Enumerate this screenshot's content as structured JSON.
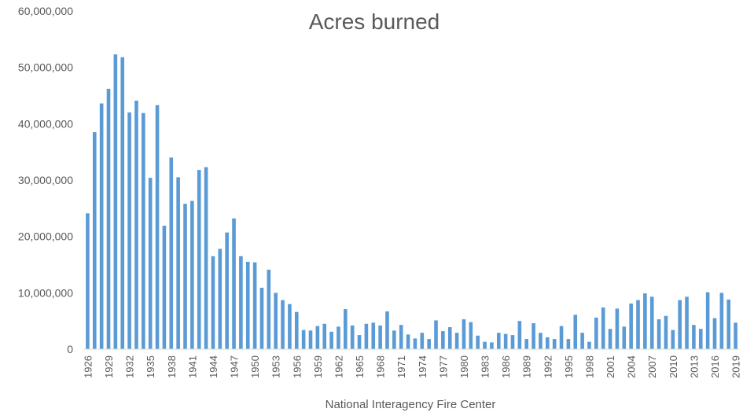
{
  "chart_data": {
    "type": "bar",
    "title": "Acres burned",
    "xlabel": "National Interagency Fire Center",
    "ylabel": "",
    "ylim": [
      0,
      60000000
    ],
    "y_ticks": [
      "0",
      "10,000,000",
      "20,000,000",
      "30,000,000",
      "40,000,000",
      "50,000,000",
      "60,000,000"
    ],
    "x_tick_labels": [
      "1926",
      "1929",
      "1932",
      "1935",
      "1938",
      "1941",
      "1944",
      "1947",
      "1950",
      "1953",
      "1956",
      "1959",
      "1962",
      "1965",
      "1968",
      "1971",
      "1974",
      "1977",
      "1980",
      "1983",
      "1986",
      "1989",
      "1992",
      "1995",
      "1998",
      "2001",
      "2004",
      "2007",
      "2010",
      "2013",
      "2016",
      "2019"
    ],
    "bar_color": "#5b9bd5",
    "grid": false,
    "legend": "none",
    "categories": [
      1926,
      1927,
      1928,
      1929,
      1930,
      1931,
      1932,
      1933,
      1934,
      1935,
      1936,
      1937,
      1938,
      1939,
      1940,
      1941,
      1942,
      1943,
      1944,
      1945,
      1946,
      1947,
      1948,
      1949,
      1950,
      1951,
      1952,
      1953,
      1954,
      1955,
      1956,
      1957,
      1958,
      1959,
      1960,
      1961,
      1962,
      1963,
      1964,
      1965,
      1966,
      1967,
      1968,
      1969,
      1970,
      1971,
      1972,
      1973,
      1974,
      1975,
      1976,
      1977,
      1978,
      1979,
      1980,
      1981,
      1982,
      1983,
      1984,
      1985,
      1986,
      1987,
      1988,
      1989,
      1990,
      1991,
      1992,
      1993,
      1994,
      1995,
      1996,
      1997,
      1998,
      1999,
      2000,
      2001,
      2002,
      2003,
      2004,
      2005,
      2006,
      2007,
      2008,
      2009,
      2010,
      2011,
      2012,
      2013,
      2014,
      2015,
      2016,
      2017,
      2018,
      2019
    ],
    "values": [
      24100000,
      38500000,
      43600000,
      46200000,
      52300000,
      51800000,
      42000000,
      44100000,
      41900000,
      30400000,
      43300000,
      21900000,
      34000000,
      30500000,
      25800000,
      26300000,
      31800000,
      32300000,
      16500000,
      17800000,
      20700000,
      23200000,
      16500000,
      15500000,
      15400000,
      10900000,
      14100000,
      10000000,
      8700000,
      8000000,
      6600000,
      3400000,
      3300000,
      4100000,
      4500000,
      3100000,
      4000000,
      7100000,
      4200000,
      2500000,
      4500000,
      4700000,
      4200000,
      6700000,
      3300000,
      4300000,
      2600000,
      1900000,
      2900000,
      1800000,
      5100000,
      3200000,
      3900000,
      2900000,
      5300000,
      4800000,
      2400000,
      1300000,
      1200000,
      2900000,
      2700000,
      2500000,
      5000000,
      1800000,
      4600000,
      2900000,
      2100000,
      1800000,
      4100000,
      1800000,
      6100000,
      2900000,
      1300000,
      5600000,
      7400000,
      3600000,
      7200000,
      4000000,
      8100000,
      8700000,
      9900000,
      9300000,
      5300000,
      5900000,
      3400000,
      8700000,
      9300000,
      4300000,
      3600000,
      10100000,
      5500000,
      10000000,
      8800000,
      4700000
    ]
  }
}
